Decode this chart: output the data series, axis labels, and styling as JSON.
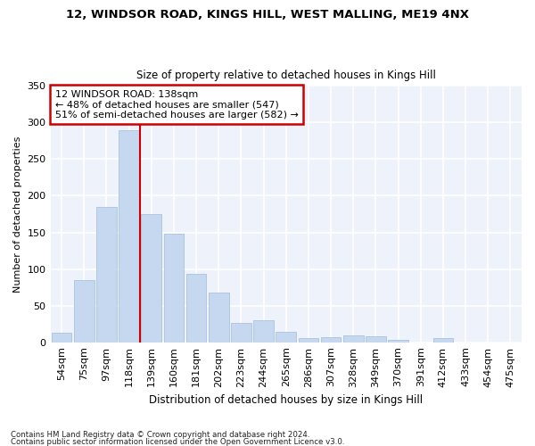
{
  "title1": "12, WINDSOR ROAD, KINGS HILL, WEST MALLING, ME19 4NX",
  "title2": "Size of property relative to detached houses in Kings Hill",
  "xlabel": "Distribution of detached houses by size in Kings Hill",
  "ylabel": "Number of detached properties",
  "categories": [
    "54sqm",
    "75sqm",
    "97sqm",
    "118sqm",
    "139sqm",
    "160sqm",
    "181sqm",
    "202sqm",
    "223sqm",
    "244sqm",
    "265sqm",
    "286sqm",
    "307sqm",
    "328sqm",
    "349sqm",
    "370sqm",
    "391sqm",
    "412sqm",
    "433sqm",
    "454sqm",
    "475sqm"
  ],
  "values": [
    13,
    85,
    185,
    290,
    175,
    148,
    93,
    68,
    26,
    30,
    14,
    6,
    7,
    9,
    8,
    3,
    0,
    6,
    0,
    0,
    0
  ],
  "bar_color": "#c5d8f0",
  "bar_edge_color": "#a0bcd8",
  "redline_x": 3.5,
  "annotation_line1": "12 WINDSOR ROAD: 138sqm",
  "annotation_line2": "← 48% of detached houses are smaller (547)",
  "annotation_line3": "51% of semi-detached houses are larger (582) →",
  "annotation_box_color": "#ffffff",
  "annotation_box_edge": "#cc0000",
  "redline_color": "#cc0000",
  "background_color": "#eef2fb",
  "grid_color": "#ffffff",
  "footer1": "Contains HM Land Registry data © Crown copyright and database right 2024.",
  "footer2": "Contains public sector information licensed under the Open Government Licence v3.0.",
  "ylim": [
    0,
    350
  ],
  "yticks": [
    0,
    50,
    100,
    150,
    200,
    250,
    300,
    350
  ]
}
